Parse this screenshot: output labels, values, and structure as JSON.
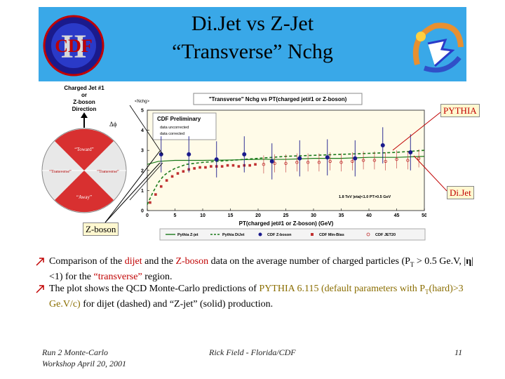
{
  "slide": {
    "title_line1": "Di.Jet vs Z-Jet",
    "title_line2": "“Transverse” Nchg",
    "cdf_logo_text": "CDF",
    "cdf_logo_roman": "II"
  },
  "diagram": {
    "heading_line1": "Charged Jet #1",
    "heading_line2": "or",
    "heading_line3": "Z-boson",
    "heading_line4": "Direction",
    "delta_phi": "Δϕ",
    "toward": "“Toward”",
    "transverse_left": "“Transverse”",
    "transverse_right": "“Transverse”",
    "away": "“Away”"
  },
  "callouts": {
    "pythia": "PYTHIA",
    "dijet": "Di.Jet",
    "zboson": "Z-boson"
  },
  "chart_data": {
    "type": "scatter",
    "title": "\"Transverse\" Nchg vs PT(charged jet#1 or Z-boson)",
    "ylabel": "<Nchg>",
    "xlabel": "PT(charged jet#1 or Z-boson) (GeV)",
    "xlim": [
      0,
      50
    ],
    "ylim": [
      0,
      5
    ],
    "x_ticks": [
      "0",
      "5",
      "10",
      "15",
      "20",
      "25",
      "30",
      "35",
      "40",
      "45",
      "50"
    ],
    "y_ticks": [
      "0",
      "1",
      "2",
      "3",
      "4",
      "5"
    ],
    "prelim_line1": "CDF Preliminary",
    "prelim_line2": "data uncorrected",
    "prelim_line3": "data corrected",
    "cuts": "1.8 TeV |eta|<1.0 PT>0.5 GeV",
    "legend": [
      "Pythia Z-jet",
      "Pythia DiJet",
      "CDF Z-boson",
      "CDF Min-Bias",
      "CDF JET20"
    ],
    "colors": {
      "pythia_zjet": "#1a7a1a",
      "pythia_dijet": "#1a7a1a",
      "cdf_zboson": "#1a1a8c",
      "cdf_minbias": "#c03030",
      "cdf_jet20": "#c03030",
      "banner": "#39a8e8"
    },
    "series": [
      {
        "name": "CDF Z-boson",
        "x": [
          2.5,
          7.5,
          12.5,
          17.5,
          22.5,
          27.5,
          32.5,
          37.5,
          42.5,
          47.5
        ],
        "y": [
          2.8,
          2.8,
          2.55,
          2.8,
          2.45,
          2.6,
          2.65,
          2.6,
          3.25,
          2.9
        ]
      },
      {
        "name": "CDF JET20",
        "x": [
          21,
          23,
          25,
          27,
          29,
          31,
          33,
          35,
          37,
          39,
          41,
          43,
          45,
          47,
          49
        ],
        "y": [
          2.3,
          2.35,
          2.35,
          2.4,
          2.4,
          2.4,
          2.45,
          2.4,
          2.45,
          2.5,
          2.5,
          2.45,
          2.55,
          2.5,
          2.6
        ]
      },
      {
        "name": "CDF Min-Bias",
        "x": [
          0.5,
          1.5,
          2.5,
          3.5,
          4.5,
          5.5,
          6.5,
          7.5,
          8.5,
          9.5,
          10.5,
          11.5,
          12.5,
          13.5,
          14.5,
          15.5,
          16.5,
          17.5,
          18.5,
          19.5
        ],
        "y": [
          0.4,
          0.8,
          1.2,
          1.5,
          1.7,
          1.85,
          1.95,
          2.05,
          2.1,
          2.15,
          2.15,
          2.2,
          2.2,
          2.2,
          2.25,
          2.25,
          2.2,
          2.25,
          2.25,
          2.3
        ]
      },
      {
        "name": "Pythia Z-jet",
        "x": [
          0,
          2,
          5,
          10,
          15,
          20,
          25,
          30,
          35,
          40,
          45,
          50
        ],
        "y": [
          2.3,
          2.45,
          2.5,
          2.5,
          2.52,
          2.55,
          2.55,
          2.6,
          2.6,
          2.65,
          2.65,
          2.7
        ]
      },
      {
        "name": "Pythia DiJet",
        "x": [
          0,
          1,
          2,
          3,
          4,
          5,
          7,
          10,
          15,
          20,
          25,
          30,
          35,
          40,
          45,
          50
        ],
        "y": [
          0.3,
          0.9,
          1.4,
          1.75,
          1.95,
          2.1,
          2.3,
          2.4,
          2.5,
          2.6,
          2.7,
          2.75,
          2.8,
          2.85,
          2.9,
          3.0
        ]
      }
    ]
  },
  "bullets": {
    "b1_a": "Comparison of the ",
    "b1_dijet": "dijet",
    "b1_b": " and the ",
    "b1_zboson": "Z-boson",
    "b1_c": " data on the average number of charged particles (P",
    "b1_sub": "T",
    "b1_d": " > 0.5 Ge.V, |",
    "b1_eta": "η",
    "b1_e": "| <1) for the ",
    "b1_trans": "“transverse”",
    "b1_f": " region.",
    "b2_a": "The plot shows the QCD Monte-Carlo predictions of ",
    "b2_pythia": "PYTHIA 6.115 (default parameters with P",
    "b2_sub": "T",
    "b2_pythia2": "(hard)>3 Ge.V/c)",
    "b2_b": " for dijet (dashed) and “Z-jet” (solid) production."
  },
  "footer": {
    "left_line1": "Run 2 Monte-Carlo",
    "left_line2": "Workshop April 20, 2001",
    "center": "Rick Field - Florida/CDF",
    "page": "11"
  }
}
